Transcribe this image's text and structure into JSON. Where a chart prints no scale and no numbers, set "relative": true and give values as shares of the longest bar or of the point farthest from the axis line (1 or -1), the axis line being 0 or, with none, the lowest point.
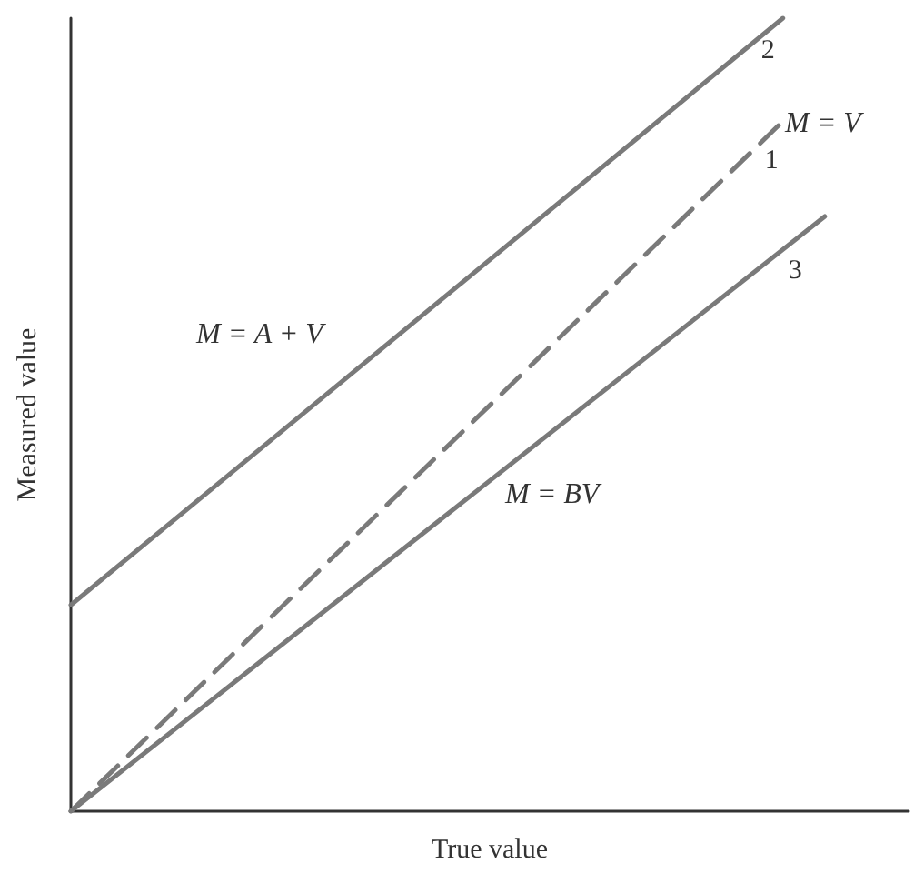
{
  "chart_data": {
    "type": "line",
    "relative": true,
    "xlabel": "True value",
    "ylabel": "Measured value",
    "categories": [
      null,
      null,
      null,
      null,
      null,
      null,
      null,
      null,
      null,
      null,
      null,
      null,
      null,
      null,
      null,
      null,
      null,
      null,
      null,
      null,
      null
    ],
    "series": [
      {
        "name": "2",
        "color": "#7a7a7a",
        "line_style": "solid",
        "values": [
          0.26,
          null,
          null,
          null,
          null,
          null,
          null,
          null,
          null,
          null,
          null,
          null,
          null,
          null,
          null,
          null,
          null,
          1,
          null,
          null,
          null
        ]
      },
      {
        "name": "1",
        "color": "#7a7a7a",
        "line_style": "dashed",
        "values": [
          0,
          null,
          null,
          null,
          null,
          null,
          null,
          null,
          null,
          null,
          null,
          null,
          null,
          null,
          null,
          null,
          null,
          0.87,
          null,
          null,
          null
        ]
      },
      {
        "name": "3",
        "color": "#7a7a7a",
        "line_style": "solid",
        "values": [
          0,
          null,
          null,
          null,
          null,
          null,
          null,
          null,
          null,
          null,
          null,
          null,
          null,
          null,
          null,
          null,
          null,
          null,
          0.75,
          null,
          null
        ]
      }
    ],
    "annotations": [
      "M = A + V",
      "M = V",
      "M = BV"
    ],
    "marker": "none",
    "grid": false,
    "legend": false
  }
}
